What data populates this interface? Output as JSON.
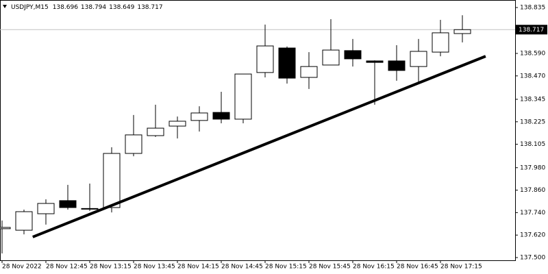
{
  "chart_data": {
    "type": "candlestick",
    "title": "USDJPY,M15",
    "header_ohlc": [
      138.696,
      138.794,
      138.649,
      138.717
    ],
    "categories": [
      "28 Nov 2022",
      null,
      "28 Nov 12:45",
      null,
      "28 Nov 13:15",
      null,
      "28 Nov 13:45",
      null,
      "28 Nov 14:15",
      null,
      "28 Nov 14:45",
      null,
      "28 Nov 15:15",
      null,
      "28 Nov 15:45",
      null,
      "28 Nov 16:15",
      null,
      "28 Nov 16:45",
      null,
      "28 Nov 17:15",
      null
    ],
    "open": [
      137.654,
      137.646,
      137.734,
      137.804,
      137.76,
      137.767,
      138.056,
      138.151,
      138.202,
      138.232,
      138.275,
      138.239,
      138.488,
      138.619,
      138.462,
      138.528,
      138.605,
      138.55,
      138.55,
      138.52,
      138.597,
      138.696
    ],
    "high": [
      137.698,
      137.756,
      137.811,
      137.888,
      137.895,
      138.089,
      138.261,
      138.316,
      138.253,
      138.308,
      138.385,
      138.48,
      138.744,
      138.627,
      138.597,
      138.773,
      138.667,
      138.553,
      138.634,
      138.667,
      138.769,
      138.794
    ],
    "low": [
      137.522,
      137.624,
      137.676,
      137.756,
      137.749,
      137.741,
      138.041,
      138.144,
      138.136,
      138.173,
      138.217,
      138.217,
      138.462,
      138.429,
      138.4,
      138.528,
      138.52,
      138.316,
      138.444,
      138.436,
      138.575,
      138.649
    ],
    "close": [
      137.661,
      137.745,
      137.789,
      137.767,
      137.762,
      138.056,
      138.155,
      138.191,
      138.228,
      138.272,
      138.239,
      138.48,
      138.63,
      138.458,
      138.52,
      138.608,
      138.561,
      138.542,
      138.499,
      138.601,
      138.7,
      138.717
    ],
    "up_color": "#ffffff",
    "down_color": "#000000",
    "line_color": "#000000",
    "last_price": 138.717,
    "trendline": {
      "x": [
        1.4,
        22.06
      ],
      "values": [
        137.61,
        138.575
      ]
    },
    "ylim": [
      137.5,
      138.835
    ],
    "yticks": [
      138.835,
      {
        "value": 138.59,
        "label": "138.590"
      },
      {
        "value": 138.47,
        "label": "138.470"
      },
      138.345,
      138.225,
      138.105,
      {
        "value": 137.98,
        "label": "137.980"
      },
      {
        "value": 137.86,
        "label": "137.860"
      },
      {
        "value": 137.74,
        "label": "137.740"
      },
      {
        "value": 137.62,
        "label": "137.620"
      },
      {
        "value": 137.5,
        "label": "137.500"
      }
    ],
    "grid": false
  }
}
